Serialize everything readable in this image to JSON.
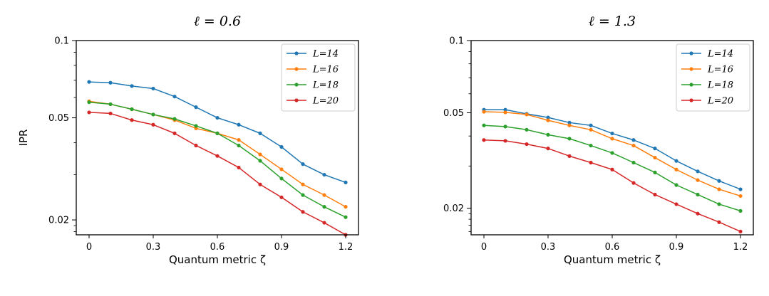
{
  "chart_data": [
    {
      "type": "line",
      "title": "ℓ = 0.6",
      "xlabel": "Quantum metric ζ",
      "ylabel": "IPR",
      "yscale": "log",
      "xlim": [
        -0.06,
        1.26
      ],
      "ylim": [
        0.0175,
        0.1
      ],
      "xticks": [
        0,
        0.3,
        0.6,
        0.9,
        1.2
      ],
      "xtick_labels": [
        "0",
        "0.3",
        "0.6",
        "0.9",
        "1.2"
      ],
      "yticks": [
        0.02,
        0.05,
        0.1
      ],
      "ytick_labels": [
        "0.02",
        "0.05",
        "0.1"
      ],
      "legend_position": "top-right",
      "x": [
        0,
        0.1,
        0.2,
        0.3,
        0.4,
        0.5,
        0.6,
        0.7,
        0.8,
        0.9,
        1.0,
        1.1,
        1.2
      ],
      "series": [
        {
          "name": "L=14",
          "color": "#1f77b4",
          "values": [
            0.069,
            0.0685,
            0.0665,
            0.065,
            0.0605,
            0.055,
            0.05,
            0.047,
            0.0435,
            0.0385,
            0.033,
            0.03,
            0.028
          ]
        },
        {
          "name": "L=16",
          "color": "#ff7f0e",
          "values": [
            0.058,
            0.0565,
            0.054,
            0.0515,
            0.049,
            0.0455,
            0.0435,
            0.041,
            0.036,
            0.0315,
            0.0275,
            0.025,
            0.0225
          ]
        },
        {
          "name": "L=18",
          "color": "#2ca02c",
          "values": [
            0.0575,
            0.0565,
            0.054,
            0.0515,
            0.0495,
            0.0465,
            0.0435,
            0.039,
            0.034,
            0.029,
            0.025,
            0.0225,
            0.0205
          ]
        },
        {
          "name": "L=20",
          "color": "#d62728",
          "values": [
            0.0525,
            0.052,
            0.049,
            0.047,
            0.0435,
            0.039,
            0.0355,
            0.032,
            0.0275,
            0.0245,
            0.0215,
            0.0195,
            0.0175
          ]
        }
      ]
    },
    {
      "type": "line",
      "title": "ℓ = 1.3",
      "xlabel": "Quantum metric ζ",
      "ylabel": "",
      "yscale": "log",
      "xlim": [
        -0.06,
        1.26
      ],
      "ylim": [
        0.0155,
        0.1
      ],
      "xticks": [
        0,
        0.3,
        0.6,
        0.9,
        1.2
      ],
      "xtick_labels": [
        "0",
        "0.3",
        "0.6",
        "0.9",
        "1.2"
      ],
      "yticks": [
        0.02,
        0.05,
        0.1
      ],
      "ytick_labels": [
        "0.02",
        "0.05",
        "0.1"
      ],
      "legend_position": "top-right",
      "x": [
        0,
        0.1,
        0.2,
        0.3,
        0.4,
        0.5,
        0.6,
        0.7,
        0.8,
        0.9,
        1.0,
        1.1,
        1.2
      ],
      "series": [
        {
          "name": "L=14",
          "color": "#1f77b4",
          "values": [
            0.0515,
            0.0515,
            0.0495,
            0.0478,
            0.0455,
            0.0443,
            0.041,
            0.0385,
            0.0355,
            0.0315,
            0.0285,
            0.026,
            0.024
          ]
        },
        {
          "name": "L=16",
          "color": "#ff7f0e",
          "values": [
            0.0505,
            0.0502,
            0.0492,
            0.0465,
            0.0443,
            0.0425,
            0.039,
            0.0365,
            0.0325,
            0.029,
            0.0262,
            0.024,
            0.0225
          ]
        },
        {
          "name": "L=18",
          "color": "#2ca02c",
          "values": [
            0.0443,
            0.0438,
            0.0425,
            0.0405,
            0.039,
            0.0365,
            0.034,
            0.031,
            0.0282,
            0.025,
            0.0228,
            0.0208,
            0.0195
          ]
        },
        {
          "name": "L=20",
          "color": "#d62728",
          "values": [
            0.0385,
            0.0382,
            0.037,
            0.0355,
            0.033,
            0.031,
            0.029,
            0.0255,
            0.0228,
            0.0208,
            0.019,
            0.0175,
            0.016
          ]
        }
      ]
    }
  ]
}
